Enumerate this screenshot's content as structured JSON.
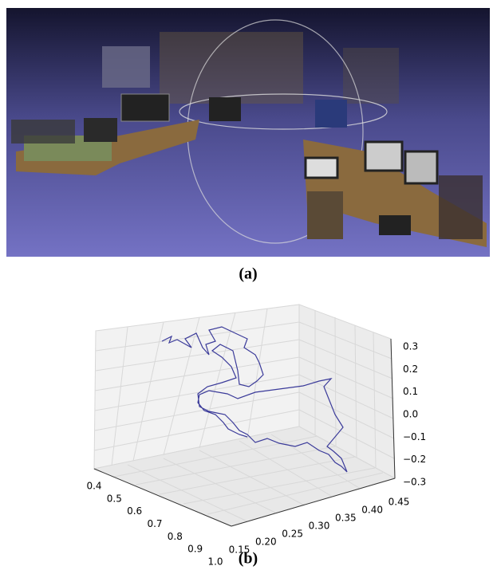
{
  "figure": {
    "a": {
      "caption": "(a)"
    },
    "b": {
      "caption": "(b)",
      "x_ticks": [
        "0.4",
        "0.5",
        "0.6",
        "0.7",
        "0.8",
        "0.9",
        "1.0"
      ],
      "y_ticks": [
        "0.15",
        "0.20",
        "0.25",
        "0.30",
        "0.35",
        "0.40",
        "0.45"
      ],
      "z_ticks": [
        "0.3",
        "0.2",
        "0.1",
        "0.0",
        "−0.1",
        "−0.2",
        "−0.3"
      ]
    }
  }
}
